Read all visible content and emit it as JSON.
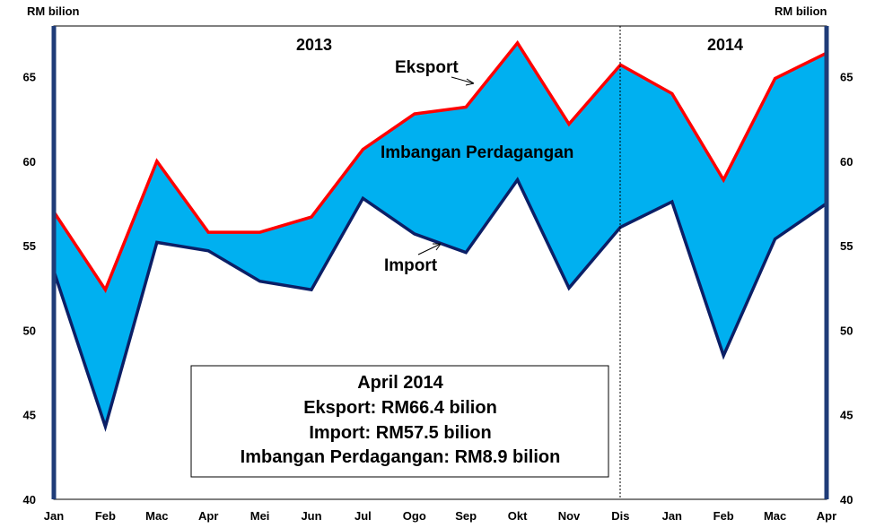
{
  "chart_data": {
    "type": "area",
    "y_unit_left": "RM bilion",
    "y_unit_right": "RM bilion",
    "categories": [
      "Jan",
      "Feb",
      "Mac",
      "Apr",
      "Mei",
      "Jun",
      "Jul",
      "Ogo",
      "Sep",
      "Okt",
      "Nov",
      "Dis",
      "Jan",
      "Feb",
      "Mac",
      "Apr"
    ],
    "yticks": [
      40,
      45,
      50,
      55,
      60,
      65
    ],
    "ylim": [
      40,
      68
    ],
    "periods": [
      {
        "label": "2013",
        "from": 0,
        "to": 11
      },
      {
        "label": "2014",
        "from": 11,
        "to": 15
      }
    ],
    "series": [
      {
        "name": "Eksport",
        "color": "#ff0000",
        "values": [
          57.0,
          52.4,
          60.0,
          55.8,
          55.8,
          56.7,
          60.7,
          62.8,
          63.2,
          67.0,
          62.2,
          65.7,
          64.0,
          58.9,
          64.9,
          66.4
        ]
      },
      {
        "name": "Import",
        "color": "#0b1f66",
        "values": [
          53.5,
          44.3,
          55.2,
          54.7,
          52.9,
          52.4,
          57.8,
          55.7,
          54.6,
          58.9,
          52.5,
          56.1,
          57.6,
          48.5,
          55.4,
          57.5
        ]
      }
    ],
    "fill_label": "Imbangan Perdagangan",
    "fill_color": "#00b0f0",
    "grid": false,
    "summary_box": {
      "lines": [
        "April 2014",
        "Eksport: RM66.4 bilion",
        "Import: RM57.5 bilion",
        "Imbangan Perdagangan: RM8.9 bilion"
      ]
    }
  }
}
